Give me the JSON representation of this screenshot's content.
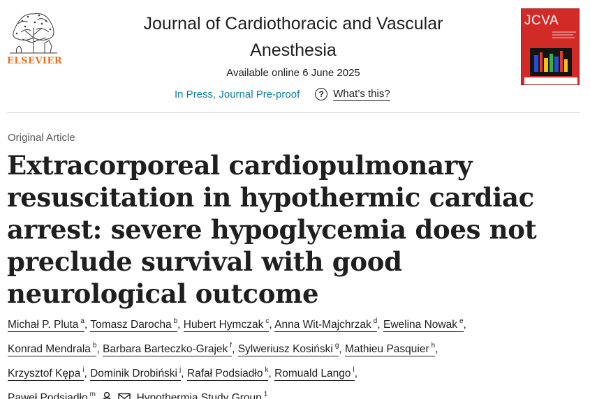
{
  "header": {
    "publisher": "ELSEVIER",
    "journal_line1": "Journal of Cardiothoracic and Vascular",
    "journal_line2": "Anesthesia",
    "available": "Available online 6 June 2025",
    "status": "In Press, Journal Pre-proof",
    "help_label": "What’s this?",
    "cover_title": "JCVA"
  },
  "article": {
    "type": "Original Article",
    "title": "Extracorporeal cardiopulmonary resuscitation in hypothermic cardiac arrest: severe hypoglycemia does not preclude survival with good neurological outcome"
  },
  "authors": [
    {
      "name": "Michał P. Pluta",
      "sup": "a"
    },
    {
      "name": "Tomasz Darocha",
      "sup": "b"
    },
    {
      "name": "Hubert Hymczak",
      "sup": "c"
    },
    {
      "name": "Anna Wit-Majchrzak",
      "sup": "d"
    },
    {
      "name": "Ewelina Nowak",
      "sup": "e"
    },
    {
      "name": "Konrad Mendrala",
      "sup": "b"
    },
    {
      "name": "Barbara Barteczko-Grajek",
      "sup": "f"
    },
    {
      "name": "Sylweriusz Kosiński",
      "sup": "g"
    },
    {
      "name": "Mathieu Pasquier",
      "sup": "h"
    },
    {
      "name": "Krzysztof Kępa",
      "sup": "i"
    },
    {
      "name": "Dominik Drobiński",
      "sup": "j"
    },
    {
      "name": "Rafał Podsiadło",
      "sup": "k"
    },
    {
      "name": "Romuald Lango",
      "sup": "l"
    },
    {
      "name": "Paweł Podsiadło",
      "sup": "m"
    },
    {
      "name": "Hypothermia Study Group",
      "sup": "1"
    }
  ],
  "colors": {
    "link": "#0c7da0",
    "brand_orange": "#e9711c",
    "cover_red": "#d12a27"
  },
  "icons": {
    "corresponding_author": "person-icon",
    "email": "envelope-icon",
    "help": "question-circle-icon"
  }
}
